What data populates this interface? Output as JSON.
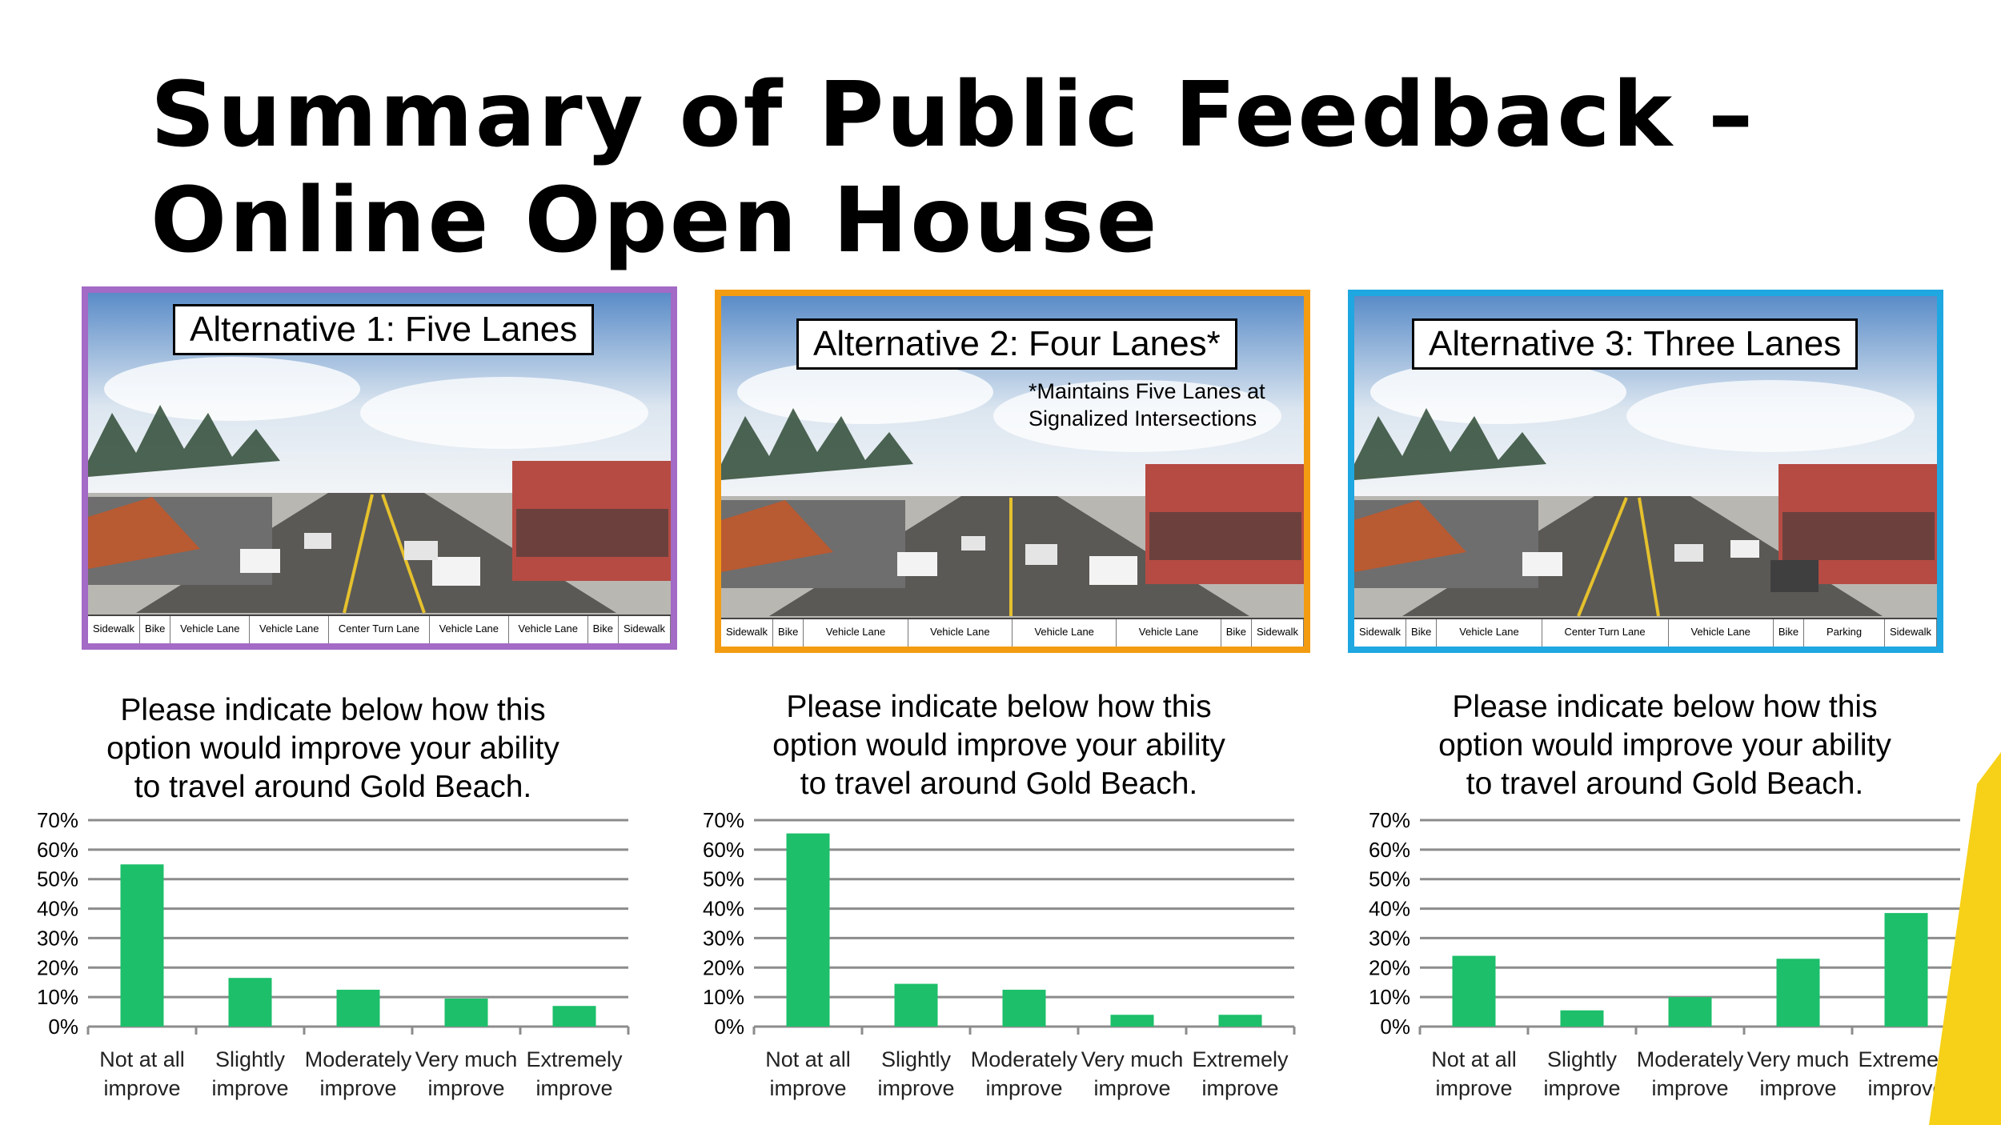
{
  "title": {
    "line1": "Summary of Public Feedback –",
    "line2": "Online Open House"
  },
  "alternatives": [
    {
      "label": "Alternative 1: Five Lanes",
      "border_color": "#A36AC6",
      "note": [],
      "lanes": [
        "Sidewalk",
        "Bike",
        "Vehicle Lane",
        "Vehicle Lane",
        "Center Turn Lane",
        "Vehicle Lane",
        "Vehicle Lane",
        "Bike",
        "Sidewalk"
      ]
    },
    {
      "label": "Alternative 2: Four Lanes*",
      "border_color": "#F39C12",
      "note": [
        "*Maintains Five Lanes at",
        "Signalized Intersections"
      ],
      "lanes": [
        "Sidewalk",
        "Bike",
        "Vehicle Lane",
        "Vehicle Lane",
        "Vehicle Lane",
        "Vehicle Lane",
        "Bike",
        "Sidewalk"
      ]
    },
    {
      "label": "Alternative 3: Three Lanes",
      "border_color": "#1EA7E1",
      "note": [],
      "lanes": [
        "Sidewalk",
        "Bike",
        "Vehicle Lane",
        "Center Turn Lane",
        "Vehicle Lane",
        "Bike",
        "Parking",
        "Sidewalk"
      ]
    }
  ],
  "question": {
    "line1": "Please indicate below how this",
    "line2": "option would improve your ability",
    "line3": "to travel around Gold Beach."
  },
  "colors": {
    "bar": "#1DBF6A",
    "grid": "#8C8C8C",
    "accent_yellow": "#F7D117"
  },
  "chart_data": [
    {
      "type": "bar",
      "categories": [
        [
          "Not at all",
          "improve"
        ],
        [
          "Slightly",
          "improve"
        ],
        [
          "Moderately",
          "improve"
        ],
        [
          "Very much",
          "improve"
        ],
        [
          "Extremely",
          "improve"
        ]
      ],
      "values": [
        0.55,
        0.165,
        0.125,
        0.095,
        0.07
      ],
      "ylim": [
        0,
        0.7
      ],
      "yticks": [
        "0%",
        "10%",
        "20%",
        "30%",
        "40%",
        "50%",
        "60%",
        "70%"
      ],
      "grid": true
    },
    {
      "type": "bar",
      "categories": [
        [
          "Not at all",
          "improve"
        ],
        [
          "Slightly",
          "improve"
        ],
        [
          "Moderately",
          "improve"
        ],
        [
          "Very much",
          "improve"
        ],
        [
          "Extremely",
          "improve"
        ]
      ],
      "values": [
        0.655,
        0.145,
        0.125,
        0.04,
        0.04
      ],
      "ylim": [
        0,
        0.7
      ],
      "yticks": [
        "0%",
        "10%",
        "20%",
        "30%",
        "40%",
        "50%",
        "60%",
        "70%"
      ],
      "grid": true
    },
    {
      "type": "bar",
      "categories": [
        [
          "Not at all",
          "improve"
        ],
        [
          "Slightly",
          "improve"
        ],
        [
          "Moderately",
          "improve"
        ],
        [
          "Very much",
          "improve"
        ],
        [
          "Extremely",
          "improve"
        ]
      ],
      "values": [
        0.24,
        0.055,
        0.1,
        0.23,
        0.385
      ],
      "ylim": [
        0,
        0.7
      ],
      "yticks": [
        "0%",
        "10%",
        "20%",
        "30%",
        "40%",
        "50%",
        "60%",
        "70%"
      ],
      "grid": true
    }
  ]
}
